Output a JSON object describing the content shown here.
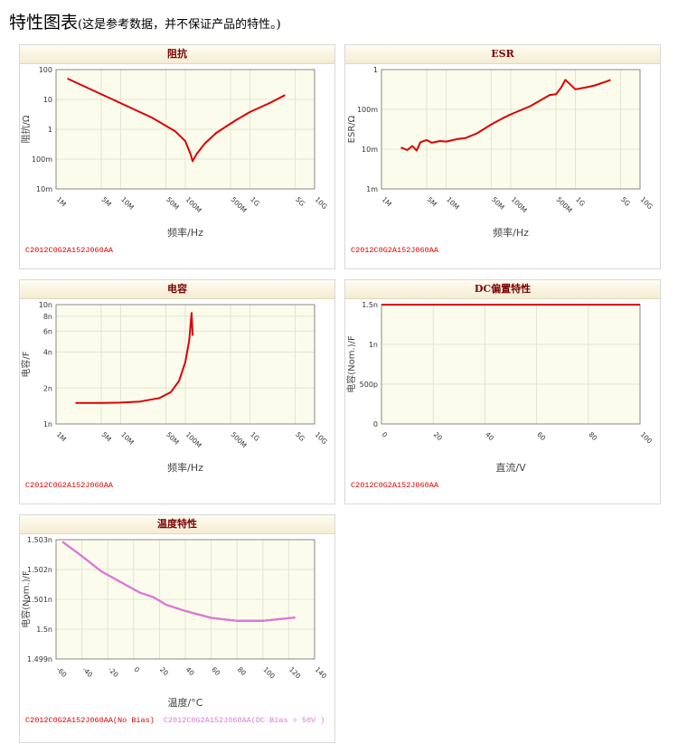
{
  "page": {
    "title": "特性图表",
    "subtitle": "(这是参考数据，并不保证产品的特性。)"
  },
  "colors": {
    "series_red": "#dd0000",
    "series_pink": "#dd77dd",
    "plot_bg": "#fcfcec",
    "grid": "#e4e4d4",
    "header_text": "#7a0000"
  },
  "chart_data": [
    {
      "type": "line",
      "title": "阻抗",
      "xlabel": "频率/Hz",
      "ylabel": "阻抗/Ω",
      "xscale": "log",
      "yscale": "log",
      "xlim": [
        1000000,
        10000000000
      ],
      "ylim": [
        0.01,
        100
      ],
      "x_ticks": [
        1000000,
        5000000,
        10000000,
        50000000,
        100000000,
        500000000,
        1000000000,
        5000000000,
        10000000000
      ],
      "x_tick_labels": [
        "1M",
        "5M",
        "10M",
        "50M",
        "100M",
        "500M",
        "1G",
        "5G",
        "10G"
      ],
      "y_ticks": [
        0.01,
        0.1,
        1,
        10,
        100
      ],
      "y_tick_labels": [
        "10m",
        "100m",
        "1",
        "10",
        "100"
      ],
      "grid": true,
      "series": [
        {
          "name": "C2012C0G2A152J060AA",
          "color": "#dd0000",
          "x": [
            1500000,
            3000000,
            10000000,
            30000000,
            70000000,
            100000000,
            120000000,
            130000000,
            150000000,
            200000000,
            300000000,
            600000000,
            1000000000,
            2000000000,
            3500000000
          ],
          "y": [
            50,
            25,
            7.5,
            2.5,
            0.85,
            0.4,
            0.15,
            0.085,
            0.15,
            0.33,
            0.75,
            2,
            3.8,
            7.5,
            14
          ]
        }
      ]
    },
    {
      "type": "line",
      "title": "ESR",
      "xlabel": "频率/Hz",
      "ylabel": "ESR/Ω",
      "xscale": "log",
      "yscale": "log",
      "xlim": [
        1000000,
        10000000000
      ],
      "ylim": [
        0.001,
        1
      ],
      "x_ticks": [
        1000000,
        5000000,
        10000000,
        50000000,
        100000000,
        500000000,
        1000000000,
        5000000000,
        10000000000
      ],
      "x_tick_labels": [
        "1M",
        "5M",
        "10M",
        "50M",
        "100M",
        "500M",
        "1G",
        "5G",
        "10G"
      ],
      "y_ticks": [
        0.001,
        0.01,
        0.1,
        1
      ],
      "y_tick_labels": [
        "1m",
        "10m",
        "100m",
        "1"
      ],
      "grid": true,
      "series": [
        {
          "name": "C2012C0G2A152J060AA",
          "color": "#dd0000",
          "x": [
            2000000,
            2500000,
            3000000,
            3500000,
            4000000,
            5000000,
            6000000,
            8000000,
            10000000,
            15000000,
            20000000,
            30000000,
            50000000,
            80000000,
            100000000,
            200000000,
            400000000,
            500000000,
            600000000,
            700000000,
            800000000,
            1000000000,
            1500000000,
            2000000000,
            3000000000,
            3500000000
          ],
          "y": [
            0.011,
            0.0095,
            0.012,
            0.0092,
            0.015,
            0.017,
            0.0145,
            0.016,
            0.0155,
            0.018,
            0.019,
            0.025,
            0.042,
            0.063,
            0.075,
            0.12,
            0.23,
            0.24,
            0.35,
            0.55,
            0.45,
            0.32,
            0.36,
            0.4,
            0.5,
            0.55
          ]
        }
      ]
    },
    {
      "type": "line",
      "title": "电容",
      "xlabel": "频率/Hz",
      "ylabel": "电容/F",
      "xscale": "log",
      "yscale": "log",
      "xlim": [
        1000000,
        10000000000
      ],
      "ylim": [
        1e-09,
        1e-08
      ],
      "x_ticks": [
        1000000,
        5000000,
        10000000,
        50000000,
        100000000,
        500000000,
        1000000000,
        5000000000,
        10000000000
      ],
      "x_tick_labels": [
        "1M",
        "5M",
        "10M",
        "50M",
        "100M",
        "500M",
        "1G",
        "5G",
        "10G"
      ],
      "y_ticks": [
        1e-09,
        2e-09,
        4e-09,
        6e-09,
        8e-09,
        1e-08
      ],
      "y_tick_labels": [
        "1n",
        "2n",
        "4n",
        "6n",
        "8n",
        "10n"
      ],
      "grid": true,
      "series": [
        {
          "name": "C2012C0G2A152J060AA",
          "color": "#dd0000",
          "x": [
            2000000,
            5000000,
            10000000,
            20000000,
            40000000,
            60000000,
            80000000,
            100000000,
            115000000,
            125000000,
            130000000
          ],
          "y": [
            1.5e-09,
            1.5e-09,
            1.51e-09,
            1.54e-09,
            1.65e-09,
            1.85e-09,
            2.3e-09,
            3.3e-09,
            5e-09,
            8.5e-09,
            5.5e-09
          ]
        }
      ]
    },
    {
      "type": "line",
      "title": "DC偏置特性",
      "xlabel": "直流/V",
      "ylabel": "电容(Nom.)/F",
      "xlim": [
        0,
        100
      ],
      "ylim": [
        0,
        1.5e-09
      ],
      "x_ticks": [
        0,
        20,
        40,
        60,
        80,
        100
      ],
      "x_tick_labels": [
        "0",
        "20",
        "40",
        "60",
        "80",
        "100"
      ],
      "y_ticks": [
        0,
        5e-10,
        1e-09,
        1.5e-09
      ],
      "y_tick_labels": [
        "0",
        "500p",
        "1n",
        "1.5n"
      ],
      "grid": true,
      "series": [
        {
          "name": "C2012C0G2A152J060AA",
          "color": "#dd0000",
          "x": [
            0,
            100
          ],
          "y": [
            1.5e-09,
            1.5e-09
          ]
        }
      ]
    },
    {
      "type": "line",
      "title": "温度特性",
      "xlabel": "温度/°C",
      "ylabel": "电容(Nom.)/F",
      "xlim": [
        -60,
        140
      ],
      "ylim": [
        1.499e-09,
        1.503e-09
      ],
      "x_ticks": [
        -60,
        -40,
        -20,
        0,
        20,
        40,
        60,
        80,
        100,
        120,
        140
      ],
      "x_tick_labels": [
        "-60",
        "-40",
        "-20",
        "0",
        "20",
        "40",
        "60",
        "80",
        "100",
        "120",
        "140"
      ],
      "y_ticks": [
        1.499e-09,
        1.5e-09,
        1.501e-09,
        1.502e-09,
        1.503e-09
      ],
      "y_tick_labels": [
        "1.499n",
        "1.5n",
        "1.501n",
        "1.502n",
        "1.503n"
      ],
      "grid": true,
      "series": [
        {
          "name": "C2012C0G2A152J060AA(No Bias)",
          "color": "#dd0000",
          "x": [
            -55,
            -40,
            -25,
            -10,
            5,
            15,
            25,
            40,
            60,
            80,
            100,
            125
          ],
          "y": [
            1.50293e-09,
            1.50245e-09,
            1.50194e-09,
            1.50158e-09,
            1.50122e-09,
            1.50108e-09,
            1.50082e-09,
            1.50061e-09,
            1.50038e-09,
            1.50028e-09,
            1.50028e-09,
            1.50039e-09
          ]
        },
        {
          "name": "C2012C0G2A152J060AA(DC Bias = 50V )",
          "color": "#dd77dd",
          "x": [
            -55,
            -40,
            -25,
            -10,
            5,
            15,
            25,
            40,
            60,
            80,
            100,
            125
          ],
          "y": [
            1.50293e-09,
            1.50245e-09,
            1.50194e-09,
            1.50158e-09,
            1.50122e-09,
            1.50108e-09,
            1.50082e-09,
            1.50061e-09,
            1.50038e-09,
            1.50028e-09,
            1.50028e-09,
            1.50039e-09
          ]
        }
      ]
    }
  ]
}
